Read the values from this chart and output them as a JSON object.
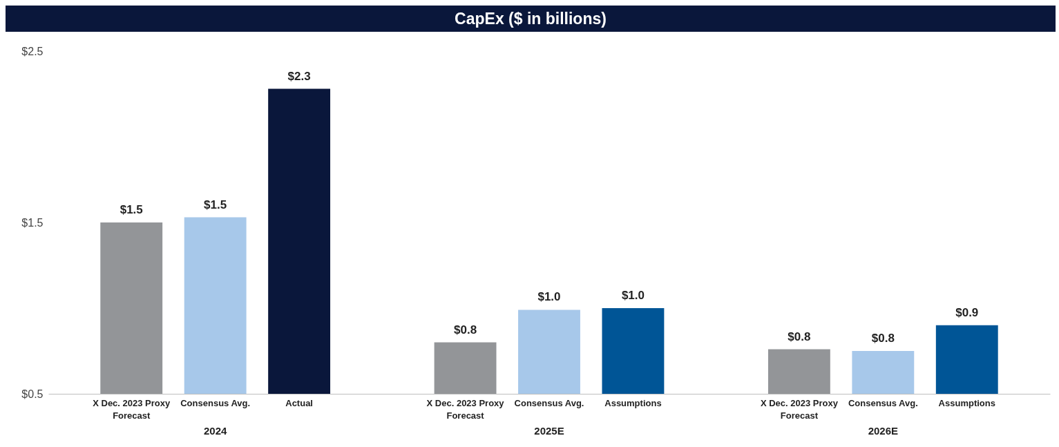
{
  "chart_data": {
    "type": "bar",
    "title": "CapEx ($ in billions)",
    "categories": [
      "2024",
      "2025E",
      "2026E"
    ],
    "series": [
      {
        "name": "X Dec. 2023 Proxy Forecast",
        "color": "#939598",
        "values": [
          1.5,
          0.8,
          0.76
        ],
        "value_labels": [
          "$1.5",
          "$0.8",
          "$0.8"
        ]
      },
      {
        "name": "Consensus Avg.",
        "color": "#a7c8ea",
        "values": [
          1.53,
          0.99,
          0.75
        ],
        "value_labels": [
          "$1.5",
          "$1.0",
          "$0.8"
        ]
      },
      {
        "name": "Actual",
        "color": "#0a173b",
        "values": [
          2.28,
          null,
          null
        ],
        "value_labels": [
          "$2.3",
          null,
          null
        ]
      },
      {
        "name": "Assumptions",
        "color": "#005596",
        "values": [
          null,
          1.0,
          0.9
        ],
        "value_labels": [
          null,
          "$1.0",
          "$0.9"
        ]
      }
    ],
    "ylim": [
      0.5,
      2.5
    ],
    "yticks": [
      {
        "value": 0.5,
        "label": "$0.5"
      },
      {
        "value": 1.5,
        "label": "$1.5"
      },
      {
        "value": 2.5,
        "label": "$2.5"
      }
    ],
    "grid": false,
    "legend": false
  }
}
